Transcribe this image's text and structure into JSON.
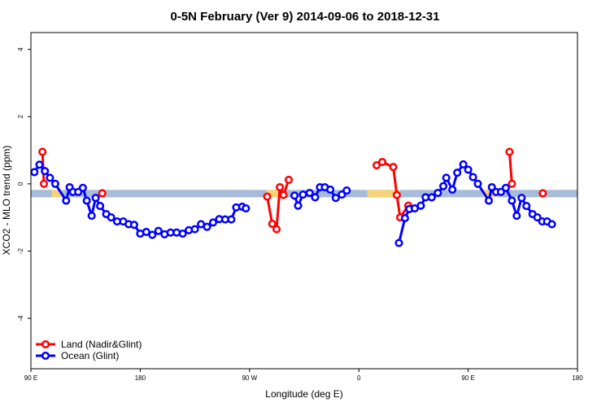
{
  "chart_data": {
    "type": "line",
    "title": "0-5N February (Ver 9)   2014-09-06 to 2018-12-31",
    "xlabel": "Longitude (deg E)",
    "ylabel": "XCO2 - MLO trend (ppm)",
    "xlim": [
      90,
      540
    ],
    "ylim": [
      -5.5,
      4.5
    ],
    "x_ticks": [
      {
        "value": 90,
        "label": "90 E"
      },
      {
        "value": 180,
        "label": "180"
      },
      {
        "value": 270,
        "label": "90 W"
      },
      {
        "value": 360,
        "label": "0"
      },
      {
        "value": 450,
        "label": "90 E"
      },
      {
        "value": 540,
        "label": "180"
      }
    ],
    "y_ticks": [
      {
        "value": 4,
        "label": "4"
      },
      {
        "value": 2,
        "label": "2"
      },
      {
        "value": 0,
        "label": "0"
      },
      {
        "value": -2,
        "label": "-2"
      },
      {
        "value": -4,
        "label": "-4"
      }
    ],
    "grid": false,
    "legend_position": "bottom-left",
    "band": {
      "y_range": [
        -0.4,
        -0.18
      ],
      "color": "#a7bcd9",
      "land_color": "#f6d37a"
    },
    "land_segments": [
      [
        285,
        300
      ],
      [
        100,
        118
      ],
      [
        100,
        118
      ],
      [
        100,
        118
      ],
      [
        100,
        118
      ]
    ],
    "series": [
      {
        "name": "Land (Nadir&Glint)",
        "color": "#ff0000",
        "segments": [
          [
            [
              99.5,
              0.95
            ],
            [
              100.7,
              0.0
            ]
          ],
          [
            [
              148.7,
              -0.28
            ]
          ],
          [
            [
              284.5,
              -0.38
            ],
            [
              288.7,
              -1.19
            ],
            [
              292.2,
              -1.35
            ],
            [
              295.0,
              -0.1
            ],
            [
              298.0,
              -0.33
            ],
            [
              302.3,
              0.12
            ]
          ],
          [
            [
              374.6,
              0.55
            ],
            [
              379.3,
              0.65
            ],
            [
              388.3,
              0.5
            ],
            [
              391.3,
              -0.33
            ],
            [
              394.0,
              -1.0
            ],
            [
              400.7,
              -0.65
            ]
          ],
          [
            [
              484.0,
              0.95
            ],
            [
              486.0,
              0.0
            ]
          ],
          [
            [
              511.5,
              -0.28
            ]
          ]
        ]
      },
      {
        "name": "Ocean (Glint)",
        "color": "#0000ff",
        "segments": [
          [
            [
              92.9,
              0.35
            ],
            [
              97.0,
              0.57
            ],
            [
              101.5,
              0.38
            ],
            [
              105.7,
              0.18
            ],
            [
              110.0,
              0.0
            ],
            [
              119.0,
              -0.5
            ],
            [
              121.9,
              -0.1
            ],
            [
              124.6,
              -0.24
            ],
            [
              129.0,
              -0.24
            ],
            [
              132.8,
              -0.12
            ],
            [
              136.0,
              -0.5
            ],
            [
              140.0,
              -0.95
            ],
            [
              143.3,
              -0.42
            ],
            [
              147.0,
              -0.66
            ],
            [
              152.0,
              -0.9
            ],
            [
              156.0,
              -1.0
            ],
            [
              161.0,
              -1.12
            ],
            [
              166.0,
              -1.12
            ],
            [
              170.5,
              -1.2
            ],
            [
              175.0,
              -1.22
            ],
            [
              180.0,
              -1.48
            ],
            [
              185.0,
              -1.43
            ],
            [
              190.0,
              -1.52
            ],
            [
              195.0,
              -1.4
            ],
            [
              200.0,
              -1.5
            ],
            [
              205.0,
              -1.45
            ],
            [
              210.0,
              -1.45
            ],
            [
              215.0,
              -1.48
            ],
            [
              220.0,
              -1.38
            ],
            [
              225.0,
              -1.35
            ],
            [
              230.0,
              -1.2
            ],
            [
              235.0,
              -1.28
            ],
            [
              240.0,
              -1.15
            ],
            [
              245.0,
              -1.05
            ],
            [
              250.0,
              -1.06
            ],
            [
              255.0,
              -1.06
            ],
            [
              259.0,
              -0.7
            ],
            [
              264.0,
              -0.68
            ],
            [
              267.0,
              -0.73
            ]
          ],
          [
            [
              307.0,
              -0.35
            ],
            [
              310.0,
              -0.65
            ],
            [
              314.0,
              -0.32
            ],
            [
              319.5,
              -0.27
            ],
            [
              324.0,
              -0.4
            ],
            [
              328.0,
              -0.1
            ],
            [
              332.0,
              -0.1
            ],
            [
              336.5,
              -0.17
            ],
            [
              341.0,
              -0.42
            ],
            [
              346.0,
              -0.32
            ],
            [
              350.0,
              -0.2
            ]
          ],
          [
            [
              393.0,
              -1.76
            ],
            [
              398.0,
              -1.02
            ],
            [
              401.6,
              -0.75
            ],
            [
              406.0,
              -0.73
            ],
            [
              411.0,
              -0.65
            ],
            [
              415.0,
              -0.4
            ],
            [
              420.0,
              -0.4
            ],
            [
              425.0,
              -0.27
            ],
            [
              429.6,
              -0.07
            ],
            [
              432.0,
              0.18
            ],
            [
              437.0,
              -0.17
            ],
            [
              441.0,
              0.33
            ],
            [
              446.0,
              0.58
            ],
            [
              450.0,
              0.42
            ],
            [
              454.0,
              0.2
            ],
            [
              458.0,
              0.0
            ],
            [
              467.0,
              -0.5
            ],
            [
              469.5,
              -0.1
            ],
            [
              473.0,
              -0.24
            ],
            [
              477.0,
              -0.24
            ],
            [
              481.0,
              -0.12
            ],
            [
              486.0,
              -0.5
            ],
            [
              490.0,
              -0.95
            ],
            [
              494.0,
              -0.42
            ],
            [
              498.0,
              -0.66
            ],
            [
              503.0,
              -0.9
            ],
            [
              507.0,
              -1.0
            ],
            [
              511.0,
              -1.12
            ],
            [
              515.0,
              -1.12
            ],
            [
              519.0,
              -1.2
            ]
          ]
        ]
      }
    ]
  }
}
